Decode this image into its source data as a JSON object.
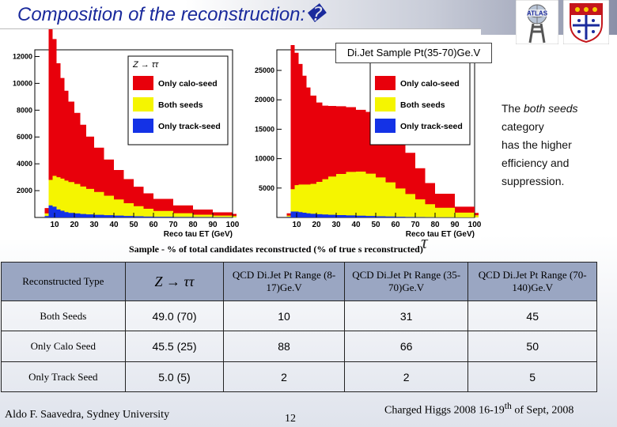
{
  "title": "Composition of the reconstruction:�",
  "plot_title": "Di.Jet Sample Pt(35-70)Ge.V",
  "side_note": {
    "line1_pre": "The ",
    "line1_em": "both seeds",
    "line2": "category",
    "line3": "has the higher",
    "line4": "efficiency and",
    "line5": "suppression."
  },
  "caption": "Sample - % of total candidates reconstructed (% of true   s reconstructed)",
  "caption_tau": "τ",
  "table": {
    "header": [
      "Reconstructed Type",
      "Z → ττ",
      "QCD Di.Jet Pt Range (8-17)Ge.V",
      "QCD Di.Jet Pt Range (35-70)Ge.V",
      "QCD Di.Jet Pt Range (70-140)Ge.V"
    ],
    "rows": [
      [
        "Both Seeds",
        "49.0 (70)",
        "10",
        "31",
        "45"
      ],
      [
        "Only Calo Seed",
        "45.5 (25)",
        "88",
        "66",
        "50"
      ],
      [
        "Only Track Seed",
        "5.0 (5)",
        "2",
        "2",
        "5"
      ]
    ]
  },
  "footer": {
    "author": "Aldo F. Saavedra, Sydney University",
    "page": "12",
    "event_pre": "Charged Higgs 2008 16-19",
    "event_sup": "th",
    "event_post": " of Sept, 2008"
  },
  "colors": {
    "calo": "#e8000b",
    "both": "#f5f500",
    "track": "#1432e6",
    "accent": "#1a2a9c"
  },
  "chart_data": [
    {
      "type": "area",
      "title": "",
      "legend": [
        "Only calo-seed",
        "Both seeds",
        "Only track-seed"
      ],
      "legend_title": "Z → ττ",
      "xlabel": "Reco tau ET   (GeV)",
      "xlim": [
        0,
        100
      ],
      "ylim": [
        0,
        12500
      ],
      "xticks": [
        10,
        20,
        30,
        40,
        50,
        60,
        70,
        80,
        90,
        100
      ],
      "yticks": [
        2000,
        4000,
        6000,
        8000,
        10000,
        12000
      ],
      "x": [
        5,
        7,
        9,
        11,
        13,
        15,
        17,
        20,
        23,
        26,
        30,
        35,
        40,
        45,
        50,
        55,
        60,
        70,
        80,
        90,
        100
      ],
      "series": [
        {
          "name": "Only track-seed",
          "values": [
            100,
            900,
            800,
            600,
            500,
            400,
            340,
            300,
            260,
            230,
            200,
            170,
            140,
            110,
            90,
            70,
            55,
            40,
            30,
            22,
            18
          ]
        },
        {
          "name": "Both seeds",
          "values": [
            200,
            1900,
            2300,
            2400,
            2400,
            2350,
            2300,
            2200,
            2050,
            1900,
            1700,
            1450,
            1200,
            950,
            750,
            580,
            430,
            280,
            180,
            120,
            90
          ]
        },
        {
          "name": "Only calo-seed",
          "values": [
            400,
            11700,
            10200,
            8500,
            7500,
            6700,
            6000,
            5300,
            4600,
            3900,
            3300,
            2700,
            2200,
            1800,
            1450,
            1150,
            900,
            580,
            380,
            240,
            160
          ]
        }
      ]
    },
    {
      "type": "area",
      "title": "Di.Jet Sample Pt(35-70)Ge.V",
      "legend": [
        "Only calo-seed",
        "Both seeds",
        "Only track-seed"
      ],
      "xlabel": "Reco tau ET   (GeV)",
      "xlim": [
        0,
        100
      ],
      "ylim": [
        0,
        28500
      ],
      "xticks": [
        10,
        20,
        30,
        40,
        50,
        60,
        70,
        80,
        90,
        100
      ],
      "yticks": [
        5000,
        10000,
        15000,
        20000,
        25000
      ],
      "x": [
        5,
        7,
        9,
        11,
        13,
        15,
        17,
        20,
        23,
        26,
        30,
        35,
        40,
        45,
        50,
        55,
        60,
        65,
        70,
        75,
        80,
        90,
        100
      ],
      "series": [
        {
          "name": "Only track-seed",
          "values": [
            100,
            1000,
            1000,
            900,
            800,
            700,
            620,
            550,
            500,
            450,
            400,
            350,
            300,
            250,
            200,
            160,
            120,
            90,
            70,
            55,
            40,
            25,
            15
          ]
        },
        {
          "name": "Both seeds",
          "values": [
            200,
            3800,
            4500,
            4700,
            4800,
            4900,
            5100,
            5500,
            6000,
            6500,
            7000,
            7400,
            7500,
            7200,
            6600,
            5800,
            4800,
            3900,
            3000,
            2200,
            1600,
            800,
            350
          ]
        },
        {
          "name": "Only calo-seed",
          "values": [
            400,
            24500,
            22500,
            20500,
            18500,
            16500,
            15000,
            13500,
            12500,
            12000,
            11500,
            11000,
            10500,
            10500,
            10600,
            10000,
            8800,
            7000,
            5300,
            3600,
            2400,
            1000,
            400
          ]
        }
      ]
    }
  ]
}
